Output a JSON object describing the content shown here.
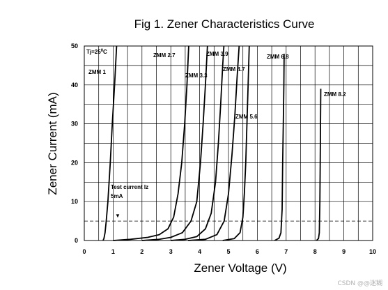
{
  "chart_data": {
    "type": "line",
    "title": "Fig 1. Zener Characteristics Curve",
    "xlabel": "Zener Voltage (V)",
    "ylabel": "Zener Current (mA)",
    "xlim": [
      0,
      10
    ],
    "ylim": [
      0,
      50
    ],
    "x_ticks": [
      "0",
      "1",
      "2",
      "3",
      "4",
      "5",
      "6",
      "7",
      "8",
      "9",
      "10"
    ],
    "y_ticks": [
      "0",
      "10",
      "20",
      "30",
      "40",
      "50"
    ],
    "grid": true,
    "legend": "none",
    "series": [
      {
        "name": "ZMM 1",
        "points": [
          [
            0.65,
            0
          ],
          [
            0.68,
            0.5
          ],
          [
            0.72,
            2
          ],
          [
            0.76,
            5
          ],
          [
            0.82,
            10
          ],
          [
            0.9,
            20
          ],
          [
            0.97,
            30
          ],
          [
            1.05,
            40
          ],
          [
            1.12,
            50
          ]
        ]
      },
      {
        "name": "ZMM 2.7",
        "points": [
          [
            1.0,
            0
          ],
          [
            1.6,
            0.3
          ],
          [
            2.2,
            0.8
          ],
          [
            2.6,
            1.5
          ],
          [
            2.9,
            3
          ],
          [
            3.1,
            6
          ],
          [
            3.25,
            12
          ],
          [
            3.38,
            20
          ],
          [
            3.48,
            30
          ],
          [
            3.56,
            40
          ],
          [
            3.62,
            50
          ]
        ]
      },
      {
        "name": "ZMM 3.3",
        "points": [
          [
            2.0,
            0
          ],
          [
            2.6,
            0.3
          ],
          [
            3.0,
            0.8
          ],
          [
            3.4,
            2
          ],
          [
            3.7,
            5
          ],
          [
            3.9,
            10
          ],
          [
            4.03,
            20
          ],
          [
            4.12,
            30
          ],
          [
            4.2,
            40
          ],
          [
            4.27,
            50
          ]
        ]
      },
      {
        "name": "ZMM 3.9",
        "points": [
          [
            3.0,
            0
          ],
          [
            3.5,
            0.3
          ],
          [
            3.9,
            1
          ],
          [
            4.2,
            3
          ],
          [
            4.4,
            7
          ],
          [
            4.55,
            15
          ],
          [
            4.65,
            25
          ],
          [
            4.73,
            35
          ],
          [
            4.8,
            45
          ],
          [
            4.84,
            50
          ]
        ]
      },
      {
        "name": "ZMM 4.7",
        "points": [
          [
            3.6,
            0
          ],
          [
            4.2,
            0.3
          ],
          [
            4.6,
            1.5
          ],
          [
            4.85,
            5
          ],
          [
            5.0,
            12
          ],
          [
            5.12,
            22
          ],
          [
            5.22,
            32
          ],
          [
            5.3,
            42
          ],
          [
            5.37,
            50
          ]
        ]
      },
      {
        "name": "ZMM 5.6",
        "points": [
          [
            4.8,
            0
          ],
          [
            5.2,
            0.5
          ],
          [
            5.4,
            2
          ],
          [
            5.5,
            6
          ],
          [
            5.55,
            12
          ],
          [
            5.6,
            20
          ],
          [
            5.64,
            30
          ],
          [
            5.68,
            40
          ],
          [
            5.72,
            50
          ]
        ]
      },
      {
        "name": "ZMM 6.8",
        "points": [
          [
            6.6,
            0
          ],
          [
            6.75,
            0.6
          ],
          [
            6.82,
            2
          ],
          [
            6.86,
            8
          ],
          [
            6.88,
            20
          ],
          [
            6.9,
            30
          ],
          [
            6.92,
            40
          ],
          [
            6.93,
            48
          ]
        ]
      },
      {
        "name": "ZMM 8.2",
        "points": [
          [
            8.05,
            0
          ],
          [
            8.12,
            0.5
          ],
          [
            8.15,
            2
          ],
          [
            8.17,
            10
          ],
          [
            8.18,
            20
          ],
          [
            8.19,
            30
          ],
          [
            8.2,
            39
          ]
        ]
      }
    ],
    "reference_line": {
      "y": 5,
      "style": "dashed"
    },
    "annotations": {
      "temperature_prefix": "Tj=25",
      "temperature_sup": "0",
      "temperature_suffix": "C",
      "test_current_line1": "Test current Iz",
      "test_current_line2": "5mA",
      "arrow": "▼"
    }
  },
  "watermark": "CSDN @@迷糊"
}
